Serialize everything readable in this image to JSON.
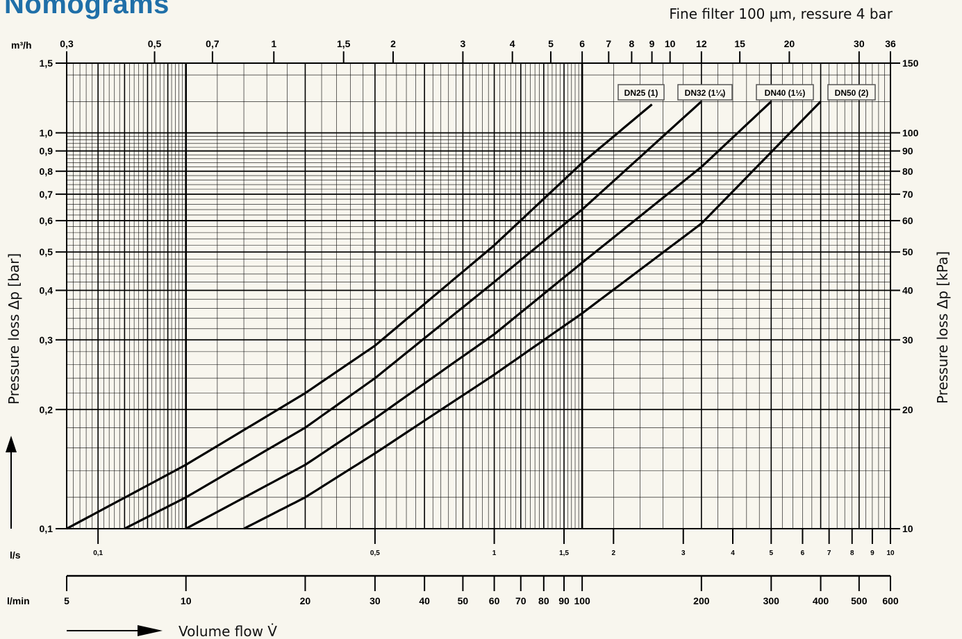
{
  "header": {
    "title": "Nomograms",
    "subtitle": "Fine filter 100 µm, ressure 4 bar"
  },
  "chart_data": {
    "type": "line",
    "x_scale": "log",
    "y_scale": "log",
    "x_range_lmin": [
      5,
      600
    ],
    "y_range_bar": [
      0.1,
      1.5
    ],
    "grid": true,
    "units": {
      "top": "m³/h",
      "ls": "l/s",
      "lmin": "l/min"
    },
    "y_label_left": "Pressure loss Δp [bar]",
    "y_label_right": "Pressure loss Δp [kPa]",
    "x_label": "Volume flow  V̇",
    "axes": {
      "top_m3h": [
        {
          "v": 0.3,
          "t": "0,3"
        },
        {
          "v": 0.5,
          "t": "0,5"
        },
        {
          "v": 0.7,
          "t": "0,7"
        },
        {
          "v": 1,
          "t": "1"
        },
        {
          "v": 1.5,
          "t": "1,5"
        },
        {
          "v": 2,
          "t": "2"
        },
        {
          "v": 3,
          "t": "3"
        },
        {
          "v": 4,
          "t": "4"
        },
        {
          "v": 5,
          "t": "5"
        },
        {
          "v": 6,
          "t": "6"
        },
        {
          "v": 7,
          "t": "7"
        },
        {
          "v": 8,
          "t": "8"
        },
        {
          "v": 9,
          "t": "9"
        },
        {
          "v": 10,
          "t": "10"
        },
        {
          "v": 12,
          "t": "12"
        },
        {
          "v": 15,
          "t": "15"
        },
        {
          "v": 20,
          "t": "20"
        },
        {
          "v": 30,
          "t": "30"
        },
        {
          "v": 36,
          "t": "36"
        }
      ],
      "ls": [
        {
          "v": 0.1,
          "t": "0,1"
        },
        {
          "v": 0.5,
          "t": "0,5"
        },
        {
          "v": 1,
          "t": "1"
        },
        {
          "v": 1.5,
          "t": "1,5"
        },
        {
          "v": 2,
          "t": "2"
        },
        {
          "v": 3,
          "t": "3"
        },
        {
          "v": 4,
          "t": "4"
        },
        {
          "v": 5,
          "t": "5"
        },
        {
          "v": 6,
          "t": "6"
        },
        {
          "v": 7,
          "t": "7"
        },
        {
          "v": 8,
          "t": "8"
        },
        {
          "v": 9,
          "t": "9"
        },
        {
          "v": 10,
          "t": "10"
        }
      ],
      "lmin": [
        {
          "v": 5,
          "t": "5"
        },
        {
          "v": 10,
          "t": "10"
        },
        {
          "v": 20,
          "t": "20"
        },
        {
          "v": 30,
          "t": "30"
        },
        {
          "v": 40,
          "t": "40"
        },
        {
          "v": 50,
          "t": "50"
        },
        {
          "v": 60,
          "t": "60"
        },
        {
          "v": 70,
          "t": "70"
        },
        {
          "v": 80,
          "t": "80"
        },
        {
          "v": 90,
          "t": "90"
        },
        {
          "v": 100,
          "t": "100"
        },
        {
          "v": 200,
          "t": "200"
        },
        {
          "v": 300,
          "t": "300"
        },
        {
          "v": 400,
          "t": "400"
        },
        {
          "v": 500,
          "t": "500"
        },
        {
          "v": 600,
          "t": "600"
        }
      ],
      "bar": [
        {
          "v": 0.1,
          "t": "0,1"
        },
        {
          "v": 0.2,
          "t": "0,2"
        },
        {
          "v": 0.3,
          "t": "0,3"
        },
        {
          "v": 0.4,
          "t": "0,4"
        },
        {
          "v": 0.5,
          "t": "0,5"
        },
        {
          "v": 0.6,
          "t": "0,6"
        },
        {
          "v": 0.7,
          "t": "0,7"
        },
        {
          "v": 0.8,
          "t": "0,8"
        },
        {
          "v": 0.9,
          "t": "0,9"
        },
        {
          "v": 1.0,
          "t": "1,0"
        },
        {
          "v": 1.5,
          "t": "1,5"
        }
      ],
      "kpa": [
        {
          "v": 10,
          "t": "10"
        },
        {
          "v": 20,
          "t": "20"
        },
        {
          "v": 30,
          "t": "30"
        },
        {
          "v": 40,
          "t": "40"
        },
        {
          "v": 50,
          "t": "50"
        },
        {
          "v": 60,
          "t": "60"
        },
        {
          "v": 70,
          "t": "70"
        },
        {
          "v": 80,
          "t": "80"
        },
        {
          "v": 90,
          "t": "90"
        },
        {
          "v": 100,
          "t": "100"
        },
        {
          "v": 150,
          "t": "150"
        }
      ]
    },
    "series": [
      {
        "name": "DN25 (1)",
        "x_lmin": [
          5,
          10,
          20,
          30,
          60,
          100,
          150
        ],
        "y_bar": [
          0.1,
          0.145,
          0.22,
          0.29,
          0.52,
          0.84,
          1.18
        ]
      },
      {
        "name": "DN32 (1¼)",
        "x_lmin": [
          7,
          10,
          20,
          30,
          60,
          100,
          200
        ],
        "y_bar": [
          0.1,
          0.12,
          0.18,
          0.24,
          0.42,
          0.64,
          1.2
        ]
      },
      {
        "name": "DN40 (1½)",
        "x_lmin": [
          10,
          20,
          30,
          60,
          100,
          200,
          300
        ],
        "y_bar": [
          0.1,
          0.145,
          0.19,
          0.31,
          0.47,
          0.82,
          1.2
        ]
      },
      {
        "name": "DN50 (2)",
        "x_lmin": [
          14,
          20,
          30,
          60,
          100,
          200,
          400
        ],
        "y_bar": [
          0.1,
          0.12,
          0.155,
          0.245,
          0.35,
          0.59,
          1.2
        ]
      }
    ]
  }
}
